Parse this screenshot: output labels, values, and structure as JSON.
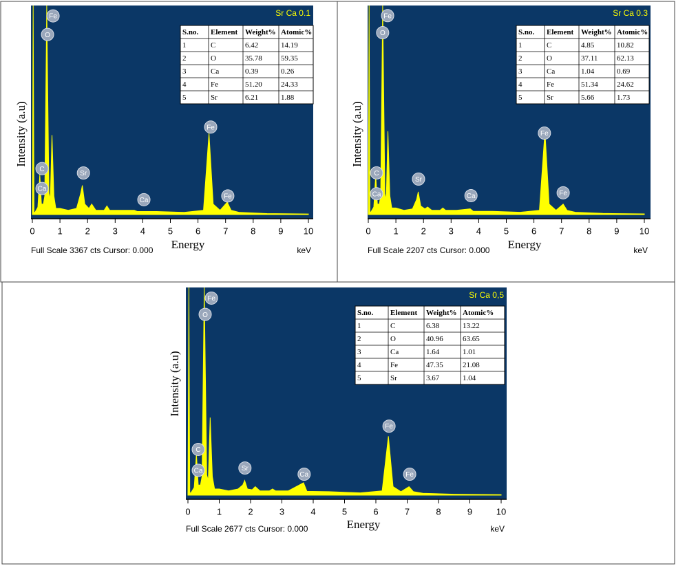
{
  "chart_data": [
    {
      "type": "area",
      "title": "Sr Ca 0.1",
      "x_label": "Energy",
      "y_label": "Intensity (a.u)",
      "footer": "Full Scale 3367 cts Cursor: 0.000",
      "x_unit": "keV",
      "color": "#ffff00",
      "background": "#0b3766",
      "xlim": [
        0,
        10
      ],
      "xticks": [
        0,
        1,
        2,
        3,
        4,
        5,
        6,
        7,
        8,
        9,
        10
      ],
      "ylim": [
        0,
        3367
      ],
      "x": [
        0,
        0.03,
        0.06,
        0.1,
        0.2,
        0.27,
        0.33,
        0.4,
        0.45,
        0.52,
        0.6,
        0.65,
        0.71,
        0.78,
        0.85,
        1.0,
        1.3,
        1.6,
        1.75,
        1.81,
        1.9,
        2.05,
        2.15,
        2.3,
        2.6,
        2.7,
        2.8,
        3.2,
        3.69,
        3.8,
        4.5,
        5.5,
        6.2,
        6.4,
        6.55,
        6.8,
        7.06,
        7.2,
        7.5,
        8.5,
        10
      ],
      "values": [
        0,
        3367,
        30,
        40,
        120,
        640,
        170,
        170,
        300,
        3367,
        340,
        250,
        1280,
        300,
        100,
        100,
        70,
        100,
        340,
        470,
        170,
        100,
        170,
        70,
        70,
        140,
        70,
        70,
        70,
        50,
        50,
        35,
        70,
        1310,
        170,
        70,
        200,
        70,
        35,
        17,
        10
      ],
      "annotations": [
        {
          "text": "Fe",
          "x": 0.75,
          "y": 3200
        },
        {
          "text": "O",
          "x": 0.55,
          "y": 2900
        },
        {
          "text": "C",
          "x": 0.35,
          "y": 740
        },
        {
          "text": "Ca",
          "x": 0.35,
          "y": 420
        },
        {
          "text": "Sr",
          "x": 1.85,
          "y": 670
        },
        {
          "text": "Ca",
          "x": 4.04,
          "y": 240
        },
        {
          "text": "Fe",
          "x": 6.46,
          "y": 1410
        },
        {
          "text": "Fe",
          "x": 7.08,
          "y": 300
        }
      ],
      "table": {
        "header": [
          "S.no.",
          "Element",
          "Weight%",
          "Atomic%"
        ],
        "rows": [
          [
            "1",
            "C",
            "6.42",
            "14.19"
          ],
          [
            "2",
            "O",
            "35.78",
            "59.35"
          ],
          [
            "3",
            "Ca",
            "0.39",
            "0.26"
          ],
          [
            "4",
            "Fe",
            "51.20",
            "24.33"
          ],
          [
            "5",
            "Sr",
            "6.21",
            "1.88"
          ]
        ]
      }
    },
    {
      "type": "area",
      "title": "Sr Ca 0.3",
      "x_label": "Energy",
      "y_label": "Intensity (a.u)",
      "footer": "Full Scale 2207 cts Cursor: 0.000",
      "x_unit": "keV",
      "color": "#ffff00",
      "background": "#0b3766",
      "xlim": [
        0,
        10
      ],
      "xticks": [
        0,
        1,
        2,
        3,
        4,
        5,
        6,
        7,
        8,
        9,
        10
      ],
      "ylim": [
        0,
        2207
      ],
      "x": [
        0,
        0.03,
        0.06,
        0.1,
        0.2,
        0.27,
        0.33,
        0.4,
        0.45,
        0.52,
        0.6,
        0.65,
        0.71,
        0.78,
        0.85,
        1.0,
        1.3,
        1.6,
        1.75,
        1.81,
        1.9,
        2.05,
        2.15,
        2.3,
        2.6,
        2.7,
        2.8,
        3.2,
        3.69,
        3.8,
        4.5,
        5.5,
        6.2,
        6.4,
        6.55,
        6.8,
        7.06,
        7.2,
        7.5,
        8.5,
        10
      ],
      "values": [
        0,
        2207,
        20,
        30,
        80,
        420,
        110,
        110,
        200,
        2207,
        220,
        160,
        880,
        200,
        70,
        70,
        45,
        60,
        160,
        240,
        90,
        60,
        80,
        45,
        45,
        70,
        45,
        45,
        60,
        35,
        35,
        25,
        45,
        880,
        110,
        45,
        110,
        45,
        25,
        12,
        7
      ],
      "annotations": [
        {
          "text": "Fe",
          "x": 0.7,
          "y": 2100
        },
        {
          "text": "O",
          "x": 0.52,
          "y": 1920
        },
        {
          "text": "C",
          "x": 0.3,
          "y": 440
        },
        {
          "text": "Ca",
          "x": 0.3,
          "y": 220
        },
        {
          "text": "Sr",
          "x": 1.82,
          "y": 375
        },
        {
          "text": "Ca",
          "x": 3.72,
          "y": 200
        },
        {
          "text": "Fe",
          "x": 6.38,
          "y": 860
        },
        {
          "text": "Fe",
          "x": 7.06,
          "y": 230
        }
      ],
      "table": {
        "header": [
          "S.no.",
          "Element",
          "Weight%",
          "Atomic%"
        ],
        "rows": [
          [
            "1",
            "C",
            "4.85",
            "10.82"
          ],
          [
            "2",
            "O",
            "37.11",
            "62.13"
          ],
          [
            "3",
            "Ca",
            "1.04",
            "0.69"
          ],
          [
            "4",
            "Fe",
            "51.34",
            "24.62"
          ],
          [
            "5",
            "Sr",
            "5.66",
            "1.73"
          ]
        ]
      }
    },
    {
      "type": "area",
      "title": "Sr Ca 0,5",
      "x_label": "Energy",
      "y_label": "Intensity (a.u)",
      "footer": "Full Scale 2677 cts Cursor: 0.000",
      "x_unit": "keV",
      "color": "#ffff00",
      "background": "#0b3766",
      "xlim": [
        0,
        10
      ],
      "xticks": [
        0,
        1,
        2,
        3,
        4,
        5,
        6,
        7,
        8,
        9,
        10
      ],
      "ylim": [
        0,
        2677
      ],
      "x": [
        0,
        0.03,
        0.06,
        0.1,
        0.2,
        0.27,
        0.33,
        0.4,
        0.45,
        0.52,
        0.6,
        0.65,
        0.71,
        0.78,
        0.85,
        1.0,
        1.3,
        1.6,
        1.75,
        1.81,
        1.9,
        2.05,
        2.15,
        2.3,
        2.6,
        2.7,
        2.8,
        3.2,
        3.69,
        3.8,
        4.5,
        5.5,
        6.2,
        6.4,
        6.55,
        6.8,
        7.06,
        7.2,
        7.5,
        8.5,
        10
      ],
      "values": [
        0,
        2677,
        25,
        35,
        100,
        530,
        130,
        130,
        240,
        2677,
        260,
        190,
        1000,
        240,
        80,
        80,
        55,
        80,
        130,
        190,
        80,
        70,
        110,
        55,
        55,
        80,
        55,
        55,
        160,
        50,
        45,
        30,
        55,
        760,
        110,
        45,
        110,
        45,
        25,
        12,
        7
      ],
      "annotations": [
        {
          "text": "Fe",
          "x": 0.75,
          "y": 2540
        },
        {
          "text": "O",
          "x": 0.55,
          "y": 2330
        },
        {
          "text": "C",
          "x": 0.33,
          "y": 590
        },
        {
          "text": "Ca",
          "x": 0.33,
          "y": 320
        },
        {
          "text": "Sr",
          "x": 1.82,
          "y": 350
        },
        {
          "text": "Ca",
          "x": 3.71,
          "y": 270
        },
        {
          "text": "Fe",
          "x": 6.42,
          "y": 890
        },
        {
          "text": "Fe",
          "x": 7.08,
          "y": 270
        }
      ],
      "table": {
        "header": [
          "S.no.",
          "Element",
          "Weight%",
          "Atomic%"
        ],
        "rows": [
          [
            "1",
            "C",
            "6.38",
            "13.22"
          ],
          [
            "2",
            "O",
            "40.96",
            "63.65"
          ],
          [
            "3",
            "Ca",
            "1.64",
            "1.01"
          ],
          [
            "4",
            "Fe",
            "47.35",
            "21.08"
          ],
          [
            "5",
            "Sr",
            "3.67",
            "1.04"
          ]
        ]
      }
    }
  ]
}
